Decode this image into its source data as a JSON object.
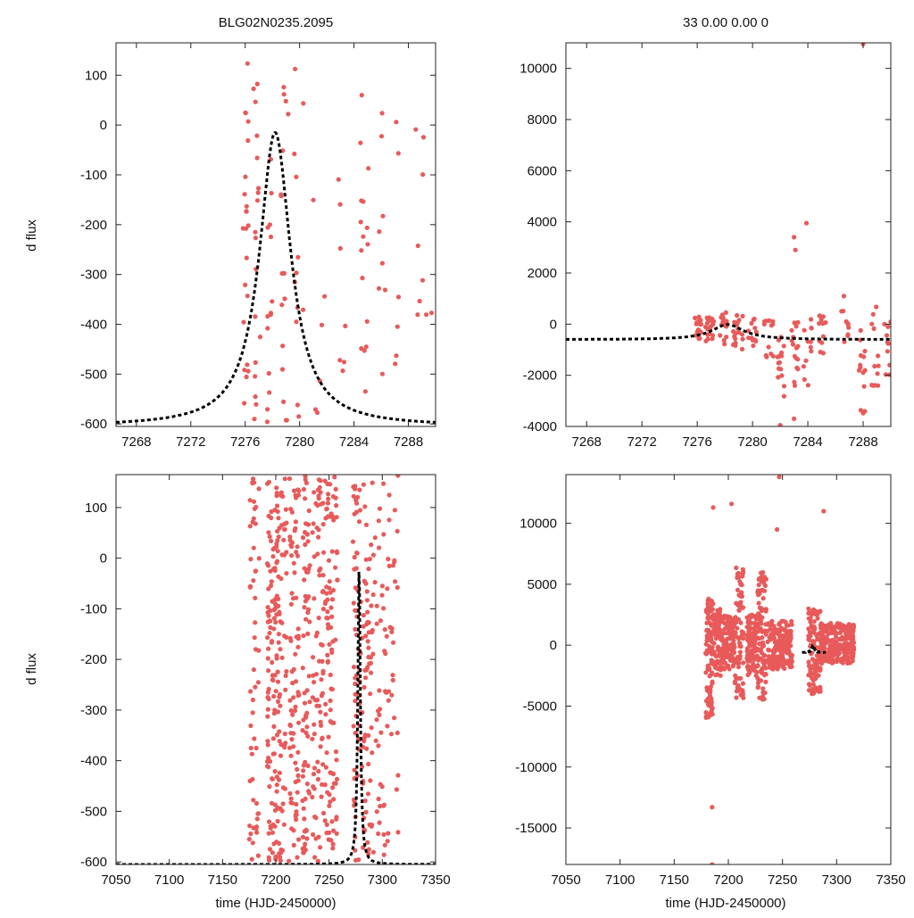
{
  "figure": {
    "title_left": "BLG02N0235.2095",
    "title_right": "33  0.00  0.00  0",
    "ylabel": "d flux",
    "xlabel": "time (HJD-2450000)"
  },
  "colors": {
    "point": "#e85a5a",
    "model": "#000000",
    "axis": "#222222"
  },
  "chart_data": [
    {
      "id": "top-left",
      "type": "scatter",
      "title": "BLG02N0235.2095",
      "ylabel": "d flux",
      "xlabel": "",
      "xlim": [
        7266.5,
        7290
      ],
      "ylim": [
        -605,
        165
      ],
      "xticks": [
        7268,
        7272,
        7276,
        7280,
        7284,
        7288
      ],
      "yticks": [
        100,
        0,
        -100,
        -200,
        -300,
        -400,
        -500,
        -600
      ],
      "model": {
        "t0": 7278.2,
        "fmin": -605,
        "amp": 590,
        "width": 1.4
      },
      "point_clusters": [
        {
          "x": [
            7275.8,
            7276.3
          ],
          "y": [
            -600,
            140
          ],
          "n": 22,
          "seed": 11
        },
        {
          "x": [
            7276.6,
            7277.1
          ],
          "y": [
            -600,
            125
          ],
          "n": 18,
          "seed": 12
        },
        {
          "x": [
            7277.6,
            7278.1
          ],
          "y": [
            -600,
            10
          ],
          "n": 14,
          "seed": 13
        },
        {
          "x": [
            7278.6,
            7279.2
          ],
          "y": [
            -600,
            110
          ],
          "n": 16,
          "seed": 14
        },
        {
          "x": [
            7279.6,
            7280.3
          ],
          "y": [
            -600,
            150
          ],
          "n": 12,
          "seed": 15
        },
        {
          "x": [
            7280.8,
            7281.9
          ],
          "y": [
            -580,
            -120
          ],
          "n": 6,
          "seed": 16
        },
        {
          "x": [
            7282.8,
            7283.5
          ],
          "y": [
            -600,
            45
          ],
          "n": 7,
          "seed": 17
        },
        {
          "x": [
            7284.4,
            7285.1
          ],
          "y": [
            -600,
            140
          ],
          "n": 16,
          "seed": 18
        },
        {
          "x": [
            7285.8,
            7286.3
          ],
          "y": [
            -560,
            150
          ],
          "n": 8,
          "seed": 19
        },
        {
          "x": [
            7286.9,
            7287.4
          ],
          "y": [
            -580,
            30
          ],
          "n": 6,
          "seed": 20
        },
        {
          "x": [
            7288.4,
            7289.9
          ],
          "y": [
            -600,
            45
          ],
          "n": 9,
          "seed": 21
        }
      ]
    },
    {
      "id": "top-right",
      "type": "scatter",
      "title": "33  0.00  0.00  0",
      "ylabel": "",
      "xlabel": "",
      "xlim": [
        7266.5,
        7290
      ],
      "ylim": [
        -4000,
        11000
      ],
      "xticks": [
        7268,
        7272,
        7276,
        7280,
        7284,
        7288
      ],
      "yticks": [
        10000,
        8000,
        6000,
        4000,
        2000,
        0,
        -2000,
        -4000
      ],
      "model": {
        "t0": 7278.2,
        "fmin": -605,
        "amp": 590,
        "width": 1.4
      },
      "point_clusters": [
        {
          "x": [
            7275.8,
            7276.3
          ],
          "y": [
            -600,
            300
          ],
          "n": 20,
          "seed": 31
        },
        {
          "x": [
            7276.6,
            7277.2
          ],
          "y": [
            -700,
            350
          ],
          "n": 20,
          "seed": 32
        },
        {
          "x": [
            7277.6,
            7278.2
          ],
          "y": [
            -800,
            500
          ],
          "n": 18,
          "seed": 33
        },
        {
          "x": [
            7278.6,
            7279.3
          ],
          "y": [
            -1000,
            400
          ],
          "n": 18,
          "seed": 34
        },
        {
          "x": [
            7279.7,
            7280.3
          ],
          "y": [
            -900,
            350
          ],
          "n": 14,
          "seed": 35
        },
        {
          "x": [
            7280.8,
            7281.5
          ],
          "y": [
            -1500,
            200
          ],
          "n": 12,
          "seed": 36
        },
        {
          "x": [
            7281.8,
            7282.3
          ],
          "y": [
            -3500,
            -500
          ],
          "n": 16,
          "seed": 37
        },
        {
          "x": [
            7282.8,
            7283.3
          ],
          "y": [
            -2800,
            400
          ],
          "n": 16,
          "seed": 38
        },
        {
          "x": [
            7283.7,
            7284.3
          ],
          "y": [
            -2500,
            500
          ],
          "n": 12,
          "seed": 39
        },
        {
          "x": [
            7284.8,
            7285.3
          ],
          "y": [
            -1500,
            700
          ],
          "n": 12,
          "seed": 40
        },
        {
          "x": [
            7286.4,
            7287.0
          ],
          "y": [
            -1200,
            1200
          ],
          "n": 10,
          "seed": 41
        },
        {
          "x": [
            7287.7,
            7288.2
          ],
          "y": [
            -3600,
            200
          ],
          "n": 14,
          "seed": 42
        },
        {
          "x": [
            7288.6,
            7289.1
          ],
          "y": [
            -2600,
            900
          ],
          "n": 12,
          "seed": 43
        },
        {
          "x": [
            7289.5,
            7290.0
          ],
          "y": [
            -2000,
            500
          ],
          "n": 10,
          "seed": 44
        }
      ],
      "extra_points": [
        {
          "x": [
            7283.0,
            7283.1,
            7283.9,
            7288.0,
            7282.0,
            7283.0
          ],
          "y": [
            3400,
            2900,
            3950,
            10950,
            -3950,
            -3700
          ]
        }
      ]
    },
    {
      "id": "bottom-left",
      "type": "scatter",
      "title": "",
      "ylabel": "d flux",
      "xlabel": "time (HJD-2450000)",
      "xlim": [
        7050,
        7350
      ],
      "ylim": [
        -605,
        165
      ],
      "xticks": [
        7050,
        7100,
        7150,
        7200,
        7250,
        7300,
        7350
      ],
      "yticks": [
        100,
        0,
        -100,
        -200,
        -300,
        -400,
        -500,
        -600
      ],
      "model": {
        "t0": 7278.2,
        "fmin": -605,
        "amp": 590,
        "width": 1.4
      },
      "point_clusters": [
        {
          "x": [
            7175,
            7185
          ],
          "y": [
            -600,
            165
          ],
          "n": 55,
          "seed": 51
        },
        {
          "x": [
            7192,
            7200
          ],
          "y": [
            -600,
            165
          ],
          "n": 90,
          "seed": 52
        },
        {
          "x": [
            7200,
            7210
          ],
          "y": [
            -600,
            165
          ],
          "n": 90,
          "seed": 53
        },
        {
          "x": [
            7212,
            7222
          ],
          "y": [
            -600,
            165
          ],
          "n": 80,
          "seed": 54
        },
        {
          "x": [
            7225,
            7232
          ],
          "y": [
            -600,
            165
          ],
          "n": 70,
          "seed": 55
        },
        {
          "x": [
            7234,
            7245
          ],
          "y": [
            -600,
            165
          ],
          "n": 80,
          "seed": 56
        },
        {
          "x": [
            7246,
            7258
          ],
          "y": [
            -600,
            165
          ],
          "n": 95,
          "seed": 57
        },
        {
          "x": [
            7272,
            7280
          ],
          "y": [
            -600,
            165
          ],
          "n": 60,
          "seed": 58
        },
        {
          "x": [
            7281,
            7292
          ],
          "y": [
            -600,
            165
          ],
          "n": 70,
          "seed": 59
        },
        {
          "x": [
            7293,
            7315
          ],
          "y": [
            -600,
            165
          ],
          "n": 70,
          "seed": 60
        }
      ]
    },
    {
      "id": "bottom-right",
      "type": "scatter",
      "title": "",
      "ylabel": "",
      "xlabel": "time (HJD-2450000)",
      "xlim": [
        7050,
        7350
      ],
      "ylim": [
        -18000,
        14000
      ],
      "xticks": [
        7050,
        7100,
        7150,
        7200,
        7250,
        7300,
        7350
      ],
      "yticks": [
        10000,
        5000,
        0,
        -5000,
        -10000,
        -15000
      ],
      "model": {
        "t0": 7278.2,
        "fmin": -605,
        "amp": 590,
        "width": 1.4,
        "xrange": [
          7268,
          7290
        ]
      },
      "point_clusters": [
        {
          "x": [
            7179,
            7186
          ],
          "y": [
            -6000,
            4000
          ],
          "n": 110,
          "seed": 71
        },
        {
          "x": [
            7186,
            7193
          ],
          "y": [
            -2500,
            3000
          ],
          "n": 70,
          "seed": 72
        },
        {
          "x": [
            7193,
            7206
          ],
          "y": [
            -2000,
            2500
          ],
          "n": 140,
          "seed": 73
        },
        {
          "x": [
            7206,
            7214
          ],
          "y": [
            -4500,
            6500
          ],
          "n": 80,
          "seed": 74
        },
        {
          "x": [
            7217,
            7227
          ],
          "y": [
            -2500,
            2500
          ],
          "n": 110,
          "seed": 75
        },
        {
          "x": [
            7227,
            7235
          ],
          "y": [
            -4500,
            6000
          ],
          "n": 90,
          "seed": 76
        },
        {
          "x": [
            7236,
            7259
          ],
          "y": [
            -2000,
            2000
          ],
          "n": 190,
          "seed": 77
        },
        {
          "x": [
            7274,
            7285
          ],
          "y": [
            -4000,
            3000
          ],
          "n": 110,
          "seed": 78
        },
        {
          "x": [
            7285,
            7316
          ],
          "y": [
            -1500,
            1800
          ],
          "n": 240,
          "seed": 79
        }
      ],
      "extra_points": [
        {
          "x": [
            7186,
            7203,
            7245,
            7247,
            7288,
            7185,
            7185
          ],
          "y": [
            11300,
            11600,
            9500,
            13800,
            11000,
            -13300,
            -18000
          ]
        }
      ]
    }
  ]
}
